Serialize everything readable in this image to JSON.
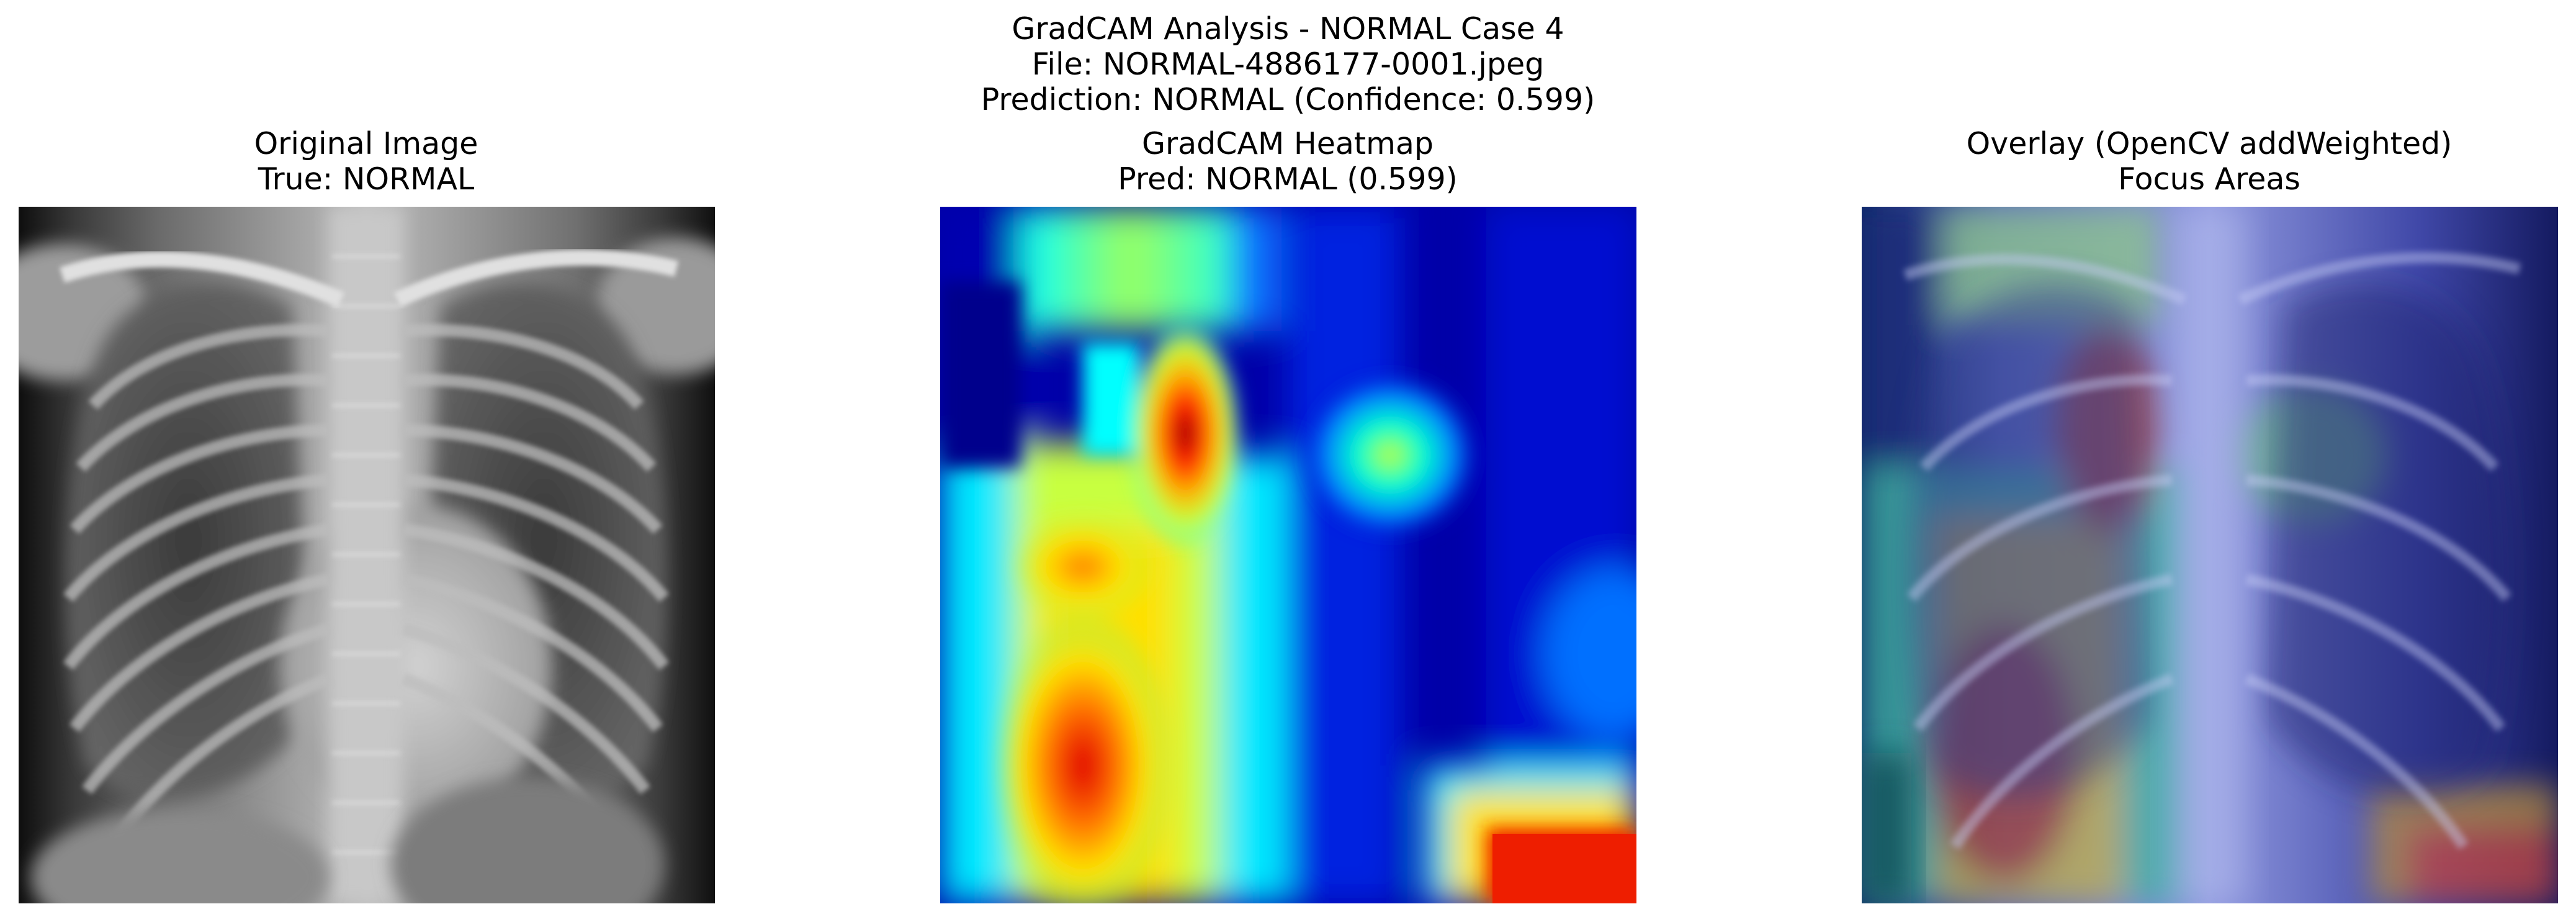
{
  "figure": {
    "title_lines": [
      "GradCAM Analysis - NORMAL Case 4",
      "File: NORMAL-4886177-0001.jpeg",
      "Prediction: NORMAL (Confidence: 0.599)"
    ]
  },
  "panels": [
    {
      "title_lines": [
        "Original Image",
        "True: NORMAL"
      ],
      "content": "chest-xray"
    },
    {
      "title_lines": [
        "GradCAM Heatmap",
        "Pred: NORMAL (0.599)"
      ],
      "content": "heatmap",
      "colormap": "jet"
    },
    {
      "title_lines": [
        "Overlay (OpenCV addWeighted)",
        "Focus Areas"
      ],
      "content": "overlay"
    }
  ]
}
